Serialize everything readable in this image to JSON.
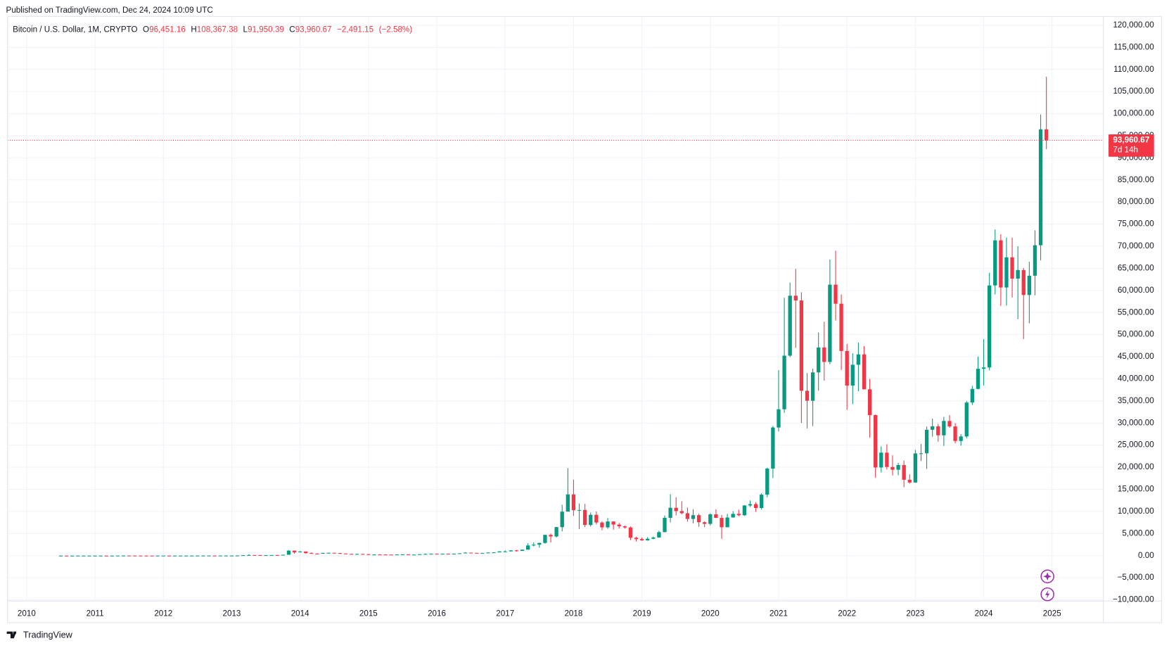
{
  "header": {
    "published": "Published on TradingView.com, Dec 24, 2024 10:09 UTC"
  },
  "footer": {
    "brand": "TradingView"
  },
  "chart_data": {
    "type": "candlestick",
    "title": "Bitcoin / U.S. Dollar, 1M, CRYPTO",
    "up_color": "#089981",
    "down_color": "#f23645",
    "grid": true,
    "legend_keys": [
      "O",
      "H",
      "L",
      "C"
    ],
    "legend": {
      "open": {
        "value": 96451.16,
        "label": "96,451.16"
      },
      "high": {
        "value": 108367.38,
        "label": "108,367.38"
      },
      "low": {
        "value": 91950.39,
        "label": "91,950.39"
      },
      "close": {
        "value": 93960.67,
        "label": "93,960.67"
      },
      "change": {
        "value": -2491.15,
        "label": "−2,491.15"
      },
      "change_pct": {
        "value": -2.58,
        "label": "(−2.58%)"
      }
    },
    "countdown": "7d 14h",
    "xlim": [
      2009.72,
      2025.75
    ],
    "xticks": [
      2010,
      2011,
      2012,
      2013,
      2014,
      2015,
      2016,
      2017,
      2018,
      2019,
      2020,
      2021,
      2022,
      2023,
      2024,
      2025
    ],
    "ylim": [
      -10100,
      122000
    ],
    "yticks": [
      {
        "value": -10000,
        "label": "−10,000.00"
      },
      {
        "value": -5000,
        "label": "−5,000.00"
      },
      {
        "value": 0,
        "label": "0.00"
      },
      {
        "value": 5000,
        "label": "5,000.00"
      },
      {
        "value": 10000,
        "label": "10,000.00"
      },
      {
        "value": 15000,
        "label": "15,000.00"
      },
      {
        "value": 20000,
        "label": "20,000.00"
      },
      {
        "value": 25000,
        "label": "25,000.00"
      },
      {
        "value": 30000,
        "label": "30,000.00"
      },
      {
        "value": 35000,
        "label": "35,000.00"
      },
      {
        "value": 40000,
        "label": "40,000.00"
      },
      {
        "value": 45000,
        "label": "45,000.00"
      },
      {
        "value": 50000,
        "label": "50,000.00"
      },
      {
        "value": 55000,
        "label": "55,000.00"
      },
      {
        "value": 60000,
        "label": "60,000.00"
      },
      {
        "value": 65000,
        "label": "65,000.00"
      },
      {
        "value": 70000,
        "label": "70,000.00"
      },
      {
        "value": 75000,
        "label": "75,000.00"
      },
      {
        "value": 80000,
        "label": "80,000.00"
      },
      {
        "value": 85000,
        "label": "85,000.00"
      },
      {
        "value": 90000,
        "label": "90,000.00"
      },
      {
        "value": 95000,
        "label": "95,000.00"
      },
      {
        "value": 100000,
        "label": "100,000.00"
      },
      {
        "value": 105000,
        "label": "105,000.00"
      },
      {
        "value": 110000,
        "label": "110,000.00"
      },
      {
        "value": 115000,
        "label": "115,000.00"
      },
      {
        "value": 120000,
        "label": "120,000.00"
      }
    ],
    "x": [
      "2010-07",
      "2010-08",
      "2010-09",
      "2010-10",
      "2010-11",
      "2010-12",
      "2011-01",
      "2011-02",
      "2011-03",
      "2011-04",
      "2011-05",
      "2011-06",
      "2011-07",
      "2011-08",
      "2011-09",
      "2011-10",
      "2011-11",
      "2011-12",
      "2012-01",
      "2012-02",
      "2012-03",
      "2012-04",
      "2012-05",
      "2012-06",
      "2012-07",
      "2012-08",
      "2012-09",
      "2012-10",
      "2012-11",
      "2012-12",
      "2013-01",
      "2013-02",
      "2013-03",
      "2013-04",
      "2013-05",
      "2013-06",
      "2013-07",
      "2013-08",
      "2013-09",
      "2013-10",
      "2013-11",
      "2013-12",
      "2014-01",
      "2014-02",
      "2014-03",
      "2014-04",
      "2014-05",
      "2014-06",
      "2014-07",
      "2014-08",
      "2014-09",
      "2014-10",
      "2014-11",
      "2014-12",
      "2015-01",
      "2015-02",
      "2015-03",
      "2015-04",
      "2015-05",
      "2015-06",
      "2015-07",
      "2015-08",
      "2015-09",
      "2015-10",
      "2015-11",
      "2015-12",
      "2016-01",
      "2016-02",
      "2016-03",
      "2016-04",
      "2016-05",
      "2016-06",
      "2016-07",
      "2016-08",
      "2016-09",
      "2016-10",
      "2016-11",
      "2016-12",
      "2017-01",
      "2017-02",
      "2017-03",
      "2017-04",
      "2017-05",
      "2017-06",
      "2017-07",
      "2017-08",
      "2017-09",
      "2017-10",
      "2017-11",
      "2017-12",
      "2018-01",
      "2018-02",
      "2018-03",
      "2018-04",
      "2018-05",
      "2018-06",
      "2018-07",
      "2018-08",
      "2018-09",
      "2018-10",
      "2018-11",
      "2018-12",
      "2019-01",
      "2019-02",
      "2019-03",
      "2019-04",
      "2019-05",
      "2019-06",
      "2019-07",
      "2019-08",
      "2019-09",
      "2019-10",
      "2019-11",
      "2019-12",
      "2020-01",
      "2020-02",
      "2020-03",
      "2020-04",
      "2020-05",
      "2020-06",
      "2020-07",
      "2020-08",
      "2020-09",
      "2020-10",
      "2020-11",
      "2020-12",
      "2021-01",
      "2021-02",
      "2021-03",
      "2021-04",
      "2021-05",
      "2021-06",
      "2021-07",
      "2021-08",
      "2021-09",
      "2021-10",
      "2021-11",
      "2021-12",
      "2022-01",
      "2022-02",
      "2022-03",
      "2022-04",
      "2022-05",
      "2022-06",
      "2022-07",
      "2022-08",
      "2022-09",
      "2022-10",
      "2022-11",
      "2022-12",
      "2023-01",
      "2023-02",
      "2023-03",
      "2023-04",
      "2023-05",
      "2023-06",
      "2023-07",
      "2023-08",
      "2023-09",
      "2023-10",
      "2023-11",
      "2023-12",
      "2024-01",
      "2024-02",
      "2024-03",
      "2024-04",
      "2024-05",
      "2024-06",
      "2024-07",
      "2024-08",
      "2024-09",
      "2024-10",
      "2024-11",
      "2024-12"
    ],
    "open": [
      0.05,
      0.07,
      0.06,
      0.06,
      0.19,
      0.21,
      0.3,
      0.5,
      0.9,
      0.8,
      3.5,
      8.7,
      16,
      13.5,
      8.2,
      5.1,
      3.2,
      3,
      4.7,
      5.5,
      4.9,
      4.9,
      5,
      5.2,
      6.7,
      9.3,
      10,
      12.4,
      11.2,
      12.6,
      13.5,
      20,
      33,
      93,
      139,
      129,
      97,
      106,
      135,
      133,
      198,
      1129,
      757,
      938,
      574,
      460,
      448,
      628,
      640,
      586,
      481,
      386,
      338,
      378,
      320,
      218,
      254,
      244,
      236,
      230,
      263,
      284,
      231,
      236,
      314,
      377,
      430,
      369,
      437,
      416,
      448,
      531,
      674,
      624,
      575,
      608,
      700,
      742,
      963,
      970,
      1190,
      1080,
      1350,
      2300,
      2480,
      2875,
      4700,
      4340,
      6450,
      9950,
      13850,
      10280,
      10330,
      6930,
      9240,
      7490,
      6390,
      7730,
      7030,
      6630,
      6370,
      4040,
      3740,
      3460,
      3820,
      4100,
      5320,
      8560,
      10820,
      10080,
      9600,
      8300,
      9150,
      7560,
      7190,
      9350,
      8540,
      6420,
      8630,
      9450,
      9140,
      11350,
      11660,
      10780,
      13800,
      19700,
      28990,
      33110,
      45240,
      58800,
      57720,
      37300,
      35040,
      41460,
      47100,
      43820,
      61300,
      57000,
      46300,
      38480,
      43190,
      45540,
      37640,
      31800,
      19940,
      23300,
      20050,
      19430,
      20490,
      17170,
      16540,
      23130,
      23150,
      28480,
      29250,
      27220,
      30470,
      29230,
      25940,
      26970,
      34640,
      37720,
      42270,
      42580,
      61130,
      71330,
      60670,
      67490,
      62680,
      64620,
      58970,
      63330,
      70220,
      96451.16
    ],
    "high": [
      0.09,
      0.07,
      0.07,
      0.2,
      0.5,
      0.3,
      0.5,
      1.1,
      0.95,
      3.9,
      9,
      31.9,
      16.5,
      13.9,
      8.3,
      5.2,
      3.3,
      4.8,
      7.4,
      6.1,
      5.3,
      5.3,
      5.2,
      6.7,
      9.6,
      16.4,
      12.5,
      12.6,
      12.9,
      13.7,
      20.4,
      34,
      98,
      266,
      139,
      129,
      111,
      136,
      145,
      215,
      1242,
      1160,
      1020,
      940,
      730,
      550,
      630,
      680,
      650,
      600,
      490,
      420,
      460,
      380,
      320,
      270,
      300,
      260,
      245,
      270,
      300,
      285,
      250,
      330,
      500,
      470,
      460,
      440,
      440,
      470,
      540,
      780,
      680,
      620,
      610,
      730,
      760,
      980,
      1150,
      1200,
      1290,
      1350,
      2800,
      3000,
      2920,
      4750,
      5000,
      6470,
      11500,
      19800,
      17200,
      11800,
      11700,
      9750,
      9990,
      7790,
      8500,
      7760,
      7400,
      6800,
      6600,
      4250,
      4100,
      4200,
      4300,
      5630,
      9100,
      13900,
      13200,
      12300,
      10900,
      10500,
      9500,
      7750,
      9580,
      10500,
      9200,
      9450,
      10060,
      10400,
      11450,
      12480,
      12070,
      14100,
      19900,
      29300,
      41950,
      58350,
      61800,
      64900,
      59600,
      41300,
      42300,
      50500,
      52900,
      67000,
      69000,
      59100,
      47900,
      45800,
      48200,
      47400,
      40000,
      31900,
      24700,
      25200,
      22700,
      21000,
      21500,
      18400,
      23950,
      25250,
      29200,
      31000,
      29800,
      31400,
      31800,
      30000,
      27500,
      35000,
      38400,
      45000,
      48970,
      64000,
      73800,
      72700,
      71950,
      71950,
      70000,
      65100,
      66500,
      73600,
      99800,
      108367.38
    ],
    "low": [
      0.05,
      0.06,
      0.06,
      0.06,
      0.19,
      0.17,
      0.3,
      0.5,
      0.7,
      0.8,
      3,
      8.7,
      12.5,
      6.8,
      4.7,
      2.2,
      2,
      2.8,
      4.6,
      4.3,
      4.5,
      4.6,
      4.9,
      5.2,
      6.6,
      7.1,
      9.8,
      10,
      10.3,
      12.5,
      13.2,
      19.4,
      32,
      50,
      104,
      87,
      65,
      99,
      121,
      103,
      190,
      450,
      750,
      420,
      440,
      340,
      430,
      550,
      570,
      450,
      370,
      330,
      310,
      310,
      160,
      210,
      240,
      215,
      230,
      220,
      250,
      200,
      230,
      235,
      310,
      350,
      360,
      360,
      400,
      415,
      440,
      520,
      580,
      530,
      580,
      600,
      690,
      740,
      750,
      940,
      900,
      1080,
      1350,
      2100,
      1800,
      2700,
      2980,
      4100,
      5500,
      10700,
      9000,
      6000,
      6450,
      6560,
      7050,
      5750,
      6070,
      5880,
      6120,
      6100,
      3500,
      3200,
      3350,
      3380,
      3700,
      4060,
      5320,
      7500,
      9100,
      9350,
      7700,
      7300,
      6520,
      6430,
      6850,
      8500,
      3800,
      6550,
      8600,
      8900,
      9000,
      11000,
      9900,
      10400,
      13200,
      17550,
      28100,
      32300,
      44900,
      47000,
      30000,
      28800,
      29300,
      37300,
      39600,
      43300,
      53200,
      42000,
      33000,
      34300,
      37200,
      37600,
      26700,
      17600,
      18800,
      19500,
      18150,
      18200,
      15480,
      16300,
      16500,
      21400,
      19600,
      26900,
      25800,
      24800,
      28900,
      25400,
      24900,
      26550,
      34100,
      37600,
      38500,
      41900,
      59100,
      56500,
      56600,
      58400,
      53500,
      49000,
      52550,
      58900,
      66800,
      91950.39
    ],
    "close": [
      0.07,
      0.06,
      0.06,
      0.19,
      0.21,
      0.3,
      0.5,
      0.9,
      0.8,
      3.5,
      8.7,
      16,
      13.5,
      8.2,
      5.1,
      3.2,
      3,
      4.7,
      5.5,
      4.9,
      4.9,
      5,
      5.2,
      6.7,
      9.3,
      10,
      12.4,
      11.2,
      12.6,
      13.5,
      20,
      33,
      93,
      139,
      129,
      97,
      106,
      135,
      133,
      198,
      1129,
      757,
      938,
      574,
      460,
      448,
      628,
      640,
      586,
      481,
      386,
      338,
      378,
      320,
      218,
      254,
      244,
      236,
      230,
      263,
      284,
      231,
      236,
      314,
      377,
      430,
      369,
      437,
      416,
      448,
      531,
      674,
      624,
      575,
      608,
      700,
      742,
      963,
      970,
      1190,
      1080,
      1350,
      2300,
      2480,
      2875,
      4700,
      4340,
      6450,
      9950,
      13850,
      10280,
      10330,
      6930,
      9240,
      7490,
      6390,
      7730,
      7030,
      6630,
      6370,
      4040,
      3740,
      3460,
      3820,
      4100,
      5320,
      8560,
      10820,
      10080,
      9600,
      8300,
      9150,
      7560,
      7190,
      9350,
      8540,
      6420,
      8630,
      9450,
      9140,
      11350,
      11660,
      10780,
      13800,
      19700,
      28990,
      33110,
      45240,
      58800,
      57720,
      37300,
      35040,
      41460,
      47100,
      43820,
      61300,
      57000,
      46300,
      38480,
      43190,
      45540,
      37640,
      31800,
      19940,
      23300,
      20050,
      19430,
      20490,
      17170,
      16540,
      23130,
      23150,
      28480,
      29250,
      27220,
      30470,
      29230,
      25940,
      26970,
      34640,
      37720,
      42270,
      42580,
      61130,
      71330,
      60670,
      67490,
      62680,
      64620,
      58970,
      63330,
      70220,
      96451.16,
      93960.67
    ]
  }
}
